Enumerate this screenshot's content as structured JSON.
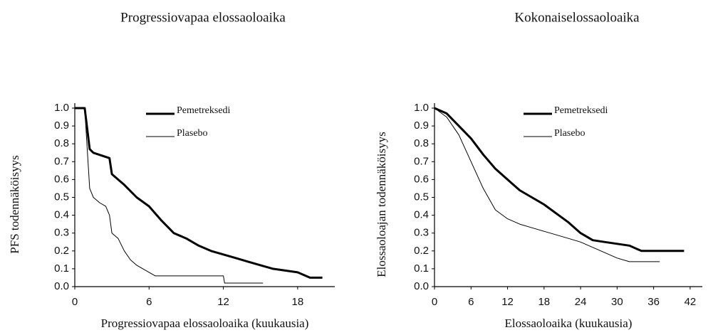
{
  "chart_data": [
    {
      "type": "line",
      "title": "Progressiovapaa elossaoloaika",
      "x_label": "Progressiovapaa elossaoloaika (kuukausia)",
      "y_label": "PFS todennäköisyys",
      "xlim": [
        0,
        21
      ],
      "xticks": [
        0,
        6,
        12,
        18
      ],
      "ylim": [
        0,
        1
      ],
      "yticks": [
        {
          "value": 0,
          "label": "0.0"
        },
        0.1,
        0.2,
        0.3,
        0.4,
        0.5,
        0.6,
        0.7,
        0.8,
        0.9,
        {
          "value": 1,
          "label": "1.0"
        }
      ],
      "series": [
        {
          "name": "Pemetreksedi",
          "color": "#000000",
          "line_width": 3,
          "x": [
            0,
            0.8,
            1.2,
            1.5,
            2.8,
            3,
            4,
            5,
            6,
            7,
            8,
            9,
            10,
            11,
            12,
            13,
            14,
            15,
            16,
            17,
            18,
            19,
            20
          ],
          "values": [
            1.0,
            1.0,
            0.77,
            0.75,
            0.72,
            0.63,
            0.57,
            0.5,
            0.45,
            0.37,
            0.3,
            0.27,
            0.23,
            0.2,
            0.18,
            0.16,
            0.14,
            0.12,
            0.1,
            0.09,
            0.08,
            0.05,
            0.05
          ]
        },
        {
          "name": "Plasebo",
          "color": "#000000",
          "line_width": 1,
          "x": [
            0,
            0.8,
            1.2,
            1.5,
            2,
            2.5,
            2.8,
            3,
            3.5,
            4,
            4.5,
            5,
            5.5,
            6,
            6.5,
            12,
            12.1,
            15.2
          ],
          "values": [
            1.0,
            1.0,
            0.55,
            0.5,
            0.47,
            0.45,
            0.4,
            0.3,
            0.27,
            0.2,
            0.15,
            0.12,
            0.1,
            0.08,
            0.06,
            0.06,
            0.02,
            0.02
          ]
        }
      ]
    },
    {
      "type": "line",
      "title": "Kokonaiselossaoloaika",
      "x_label": "Elossaoloaika (kuukausia)",
      "y_label": "Elossaoloajan todennäköisyys",
      "xlim": [
        0,
        44
      ],
      "xticks": [
        0,
        6,
        12,
        18,
        24,
        30,
        36,
        42
      ],
      "ylim": [
        0,
        1
      ],
      "yticks": [
        {
          "value": 0,
          "label": "0.0"
        },
        0.1,
        0.2,
        0.3,
        0.4,
        0.5,
        0.6,
        0.7,
        0.8,
        0.9,
        {
          "value": 1,
          "label": "1.0"
        }
      ],
      "series": [
        {
          "name": "Pemetreksedi",
          "color": "#000000",
          "line_width": 3,
          "x": [
            0,
            2,
            4,
            6,
            8,
            10,
            12,
            14,
            16,
            18,
            20,
            22,
            24,
            26,
            28,
            30,
            32,
            34,
            36,
            38,
            41
          ],
          "values": [
            1.0,
            0.97,
            0.9,
            0.83,
            0.74,
            0.66,
            0.6,
            0.54,
            0.5,
            0.46,
            0.41,
            0.36,
            0.3,
            0.26,
            0.25,
            0.24,
            0.23,
            0.2,
            0.2,
            0.2,
            0.2
          ]
        },
        {
          "name": "Plasebo",
          "color": "#000000",
          "line_width": 1,
          "x": [
            0,
            2,
            4,
            6,
            8,
            10,
            12,
            14,
            16,
            18,
            20,
            22,
            24,
            26,
            28,
            30,
            32,
            34,
            37
          ],
          "values": [
            1.0,
            0.95,
            0.85,
            0.7,
            0.55,
            0.43,
            0.38,
            0.35,
            0.33,
            0.31,
            0.29,
            0.27,
            0.25,
            0.22,
            0.19,
            0.16,
            0.14,
            0.14,
            0.14
          ]
        }
      ]
    }
  ]
}
